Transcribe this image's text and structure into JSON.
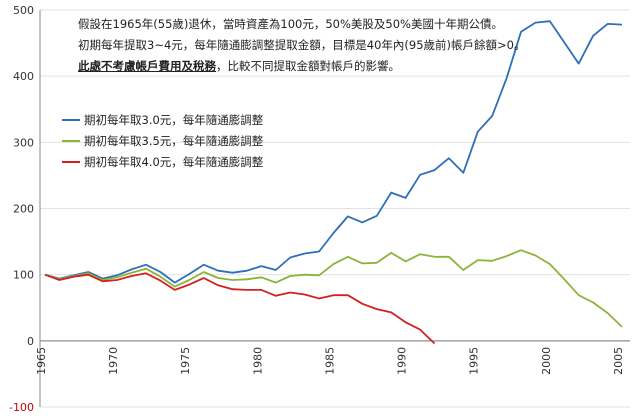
{
  "notes": {
    "line1": "假設在1965年(55歲)退休，當時資產為100元，50%美股及50%美國十年期公債。",
    "line2": "初期每年提取3~4元，每年隨通膨調整提取金額，目標是40年內(95歲前)帳戶餘額>0。",
    "line3_bold": "此處不考慮帳戶費用及稅務",
    "line3_rest": "，比較不同提取金額對帳戶的影響。"
  },
  "chart_data": {
    "type": "line",
    "xlim": [
      1965,
      2005
    ],
    "ylim": [
      -100,
      500
    ],
    "y_ticks": [
      -100,
      0,
      100,
      200,
      300,
      400,
      500
    ],
    "x_ticks": [
      1965,
      1970,
      1975,
      1980,
      1985,
      1990,
      1995,
      2000,
      2005
    ],
    "x_tick_labels": [
      "1965",
      "1970",
      "1975",
      "1980",
      "1985",
      "1990",
      "1995",
      "2000",
      "2005"
    ],
    "y_tick_labels": [
      "-100",
      "0",
      "100",
      "200",
      "300",
      "400",
      "500"
    ],
    "series": [
      {
        "name": "期初每年取3.0元，每年隨通膨調整",
        "color": "#2e6fb8",
        "x": [
          1965,
          1966,
          1967,
          1968,
          1969,
          1970,
          1971,
          1972,
          1973,
          1974,
          1975,
          1976,
          1977,
          1978,
          1979,
          1980,
          1981,
          1982,
          1983,
          1984,
          1985,
          1986,
          1987,
          1988,
          1989,
          1990,
          1991,
          1992,
          1993,
          1994,
          1995,
          1996,
          1997,
          1998,
          1999,
          2000,
          2001,
          2002,
          2003,
          2004,
          2005
        ],
        "values": [
          100,
          94,
          99,
          104,
          94,
          99,
          108,
          115,
          104,
          88,
          101,
          115,
          106,
          103,
          106,
          113,
          107,
          126,
          132,
          135,
          163,
          188,
          179,
          189,
          224,
          216,
          251,
          258,
          276,
          254,
          316,
          340,
          397,
          467,
          481,
          483,
          451,
          419,
          461,
          479,
          478
        ]
      },
      {
        "name": "期初每年取3.5元，每年隨通膨調整",
        "color": "#8db33a",
        "x": [
          1965,
          1966,
          1967,
          1968,
          1969,
          1970,
          1971,
          1972,
          1973,
          1974,
          1975,
          1976,
          1977,
          1978,
          1979,
          1980,
          1981,
          1982,
          1983,
          1984,
          1985,
          1986,
          1987,
          1988,
          1989,
          1990,
          1991,
          1992,
          1993,
          1994,
          1995,
          1996,
          1997,
          1998,
          1999,
          2000,
          2001,
          2002,
          2003,
          2004,
          2005
        ],
        "values": [
          100,
          93,
          98,
          102,
          92,
          96,
          103,
          109,
          97,
          82,
          92,
          104,
          95,
          92,
          93,
          96,
          88,
          98,
          100,
          99,
          116,
          127,
          117,
          118,
          133,
          120,
          131,
          127,
          127,
          107,
          122,
          121,
          128,
          137,
          129,
          116,
          93,
          69,
          58,
          42,
          21
        ]
      },
      {
        "name": "期初每年取4.0元，每年隨通膨調整",
        "color": "#d42020",
        "x": [
          1965,
          1966,
          1967,
          1968,
          1969,
          1970,
          1971,
          1972,
          1973,
          1974,
          1975,
          1976,
          1977,
          1978,
          1979,
          1980,
          1981,
          1982,
          1983,
          1984,
          1985,
          1986,
          1987,
          1988,
          1989,
          1990,
          1991,
          1992
        ],
        "values": [
          100,
          92,
          97,
          100,
          90,
          92,
          98,
          102,
          91,
          77,
          85,
          95,
          84,
          78,
          77,
          77,
          68,
          73,
          70,
          64,
          69,
          69,
          56,
          48,
          43,
          28,
          17,
          -4
        ]
      }
    ]
  }
}
